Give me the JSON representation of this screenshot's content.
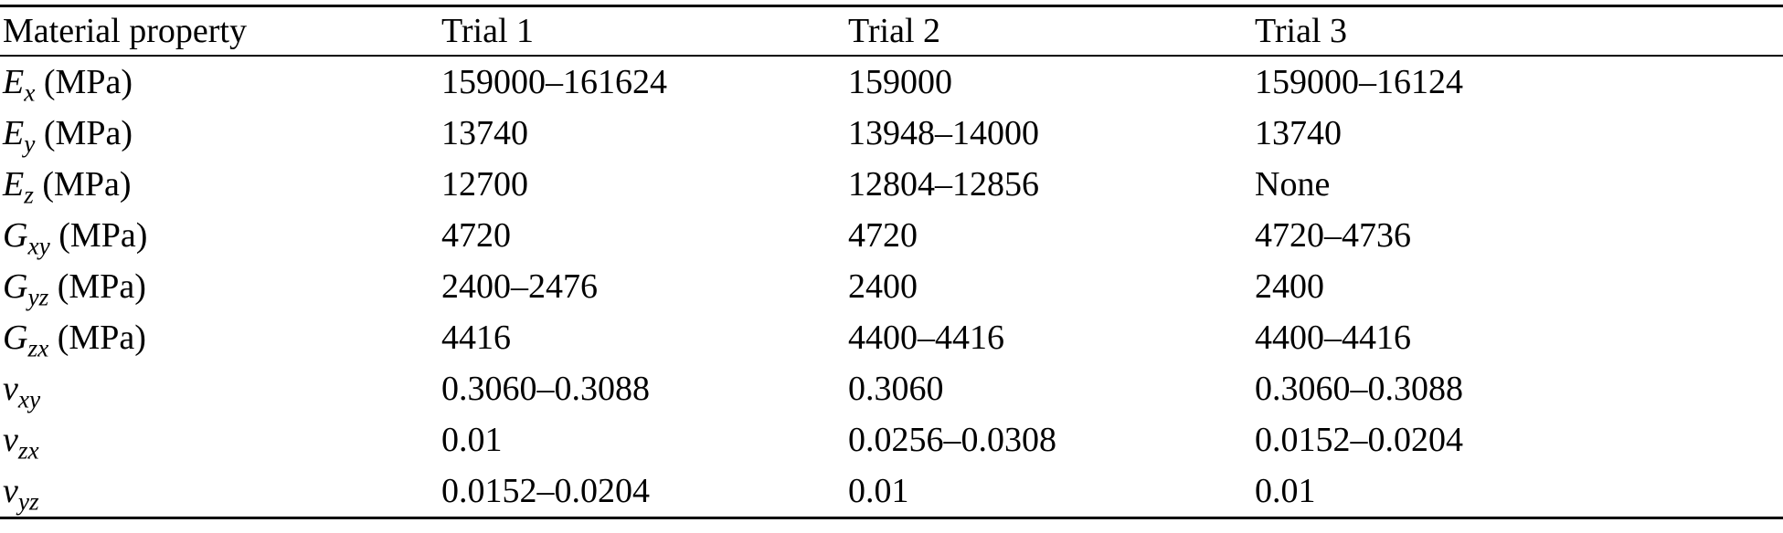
{
  "table": {
    "columns": [
      "Material property",
      "Trial 1",
      "Trial 2",
      "Trial 3"
    ],
    "rows": [
      {
        "base": "E",
        "sub": "x",
        "unit": "(MPa)",
        "values": [
          "159000–161624",
          "159000",
          "159000–16124"
        ]
      },
      {
        "base": "E",
        "sub": "y",
        "unit": "(MPa)",
        "values": [
          "13740",
          "13948–14000",
          "13740"
        ]
      },
      {
        "base": "E",
        "sub": "z",
        "unit": "(MPa)",
        "values": [
          "12700",
          "12804–12856",
          "None"
        ]
      },
      {
        "base": "G",
        "sub": "xy",
        "unit": "(MPa)",
        "values": [
          "4720",
          "4720",
          "4720–4736"
        ]
      },
      {
        "base": "G",
        "sub": "yz",
        "unit": "(MPa)",
        "values": [
          "2400–2476",
          "2400",
          "2400"
        ]
      },
      {
        "base": "G",
        "sub": "zx",
        "unit": "(MPa)",
        "values": [
          "4416",
          "4400–4416",
          "4400–4416"
        ]
      },
      {
        "base": "v",
        "sub": "xy",
        "unit": "",
        "values": [
          "0.3060–0.3088",
          "0.3060",
          "0.3060–0.3088"
        ]
      },
      {
        "base": "v",
        "sub": "zx",
        "unit": "",
        "values": [
          "0.01",
          "0.0256–0.0308",
          "0.0152–0.0204"
        ]
      },
      {
        "base": "v",
        "sub": "yz",
        "unit": "",
        "values": [
          "0.0152–0.0204",
          "0.01",
          "0.01"
        ]
      }
    ]
  }
}
